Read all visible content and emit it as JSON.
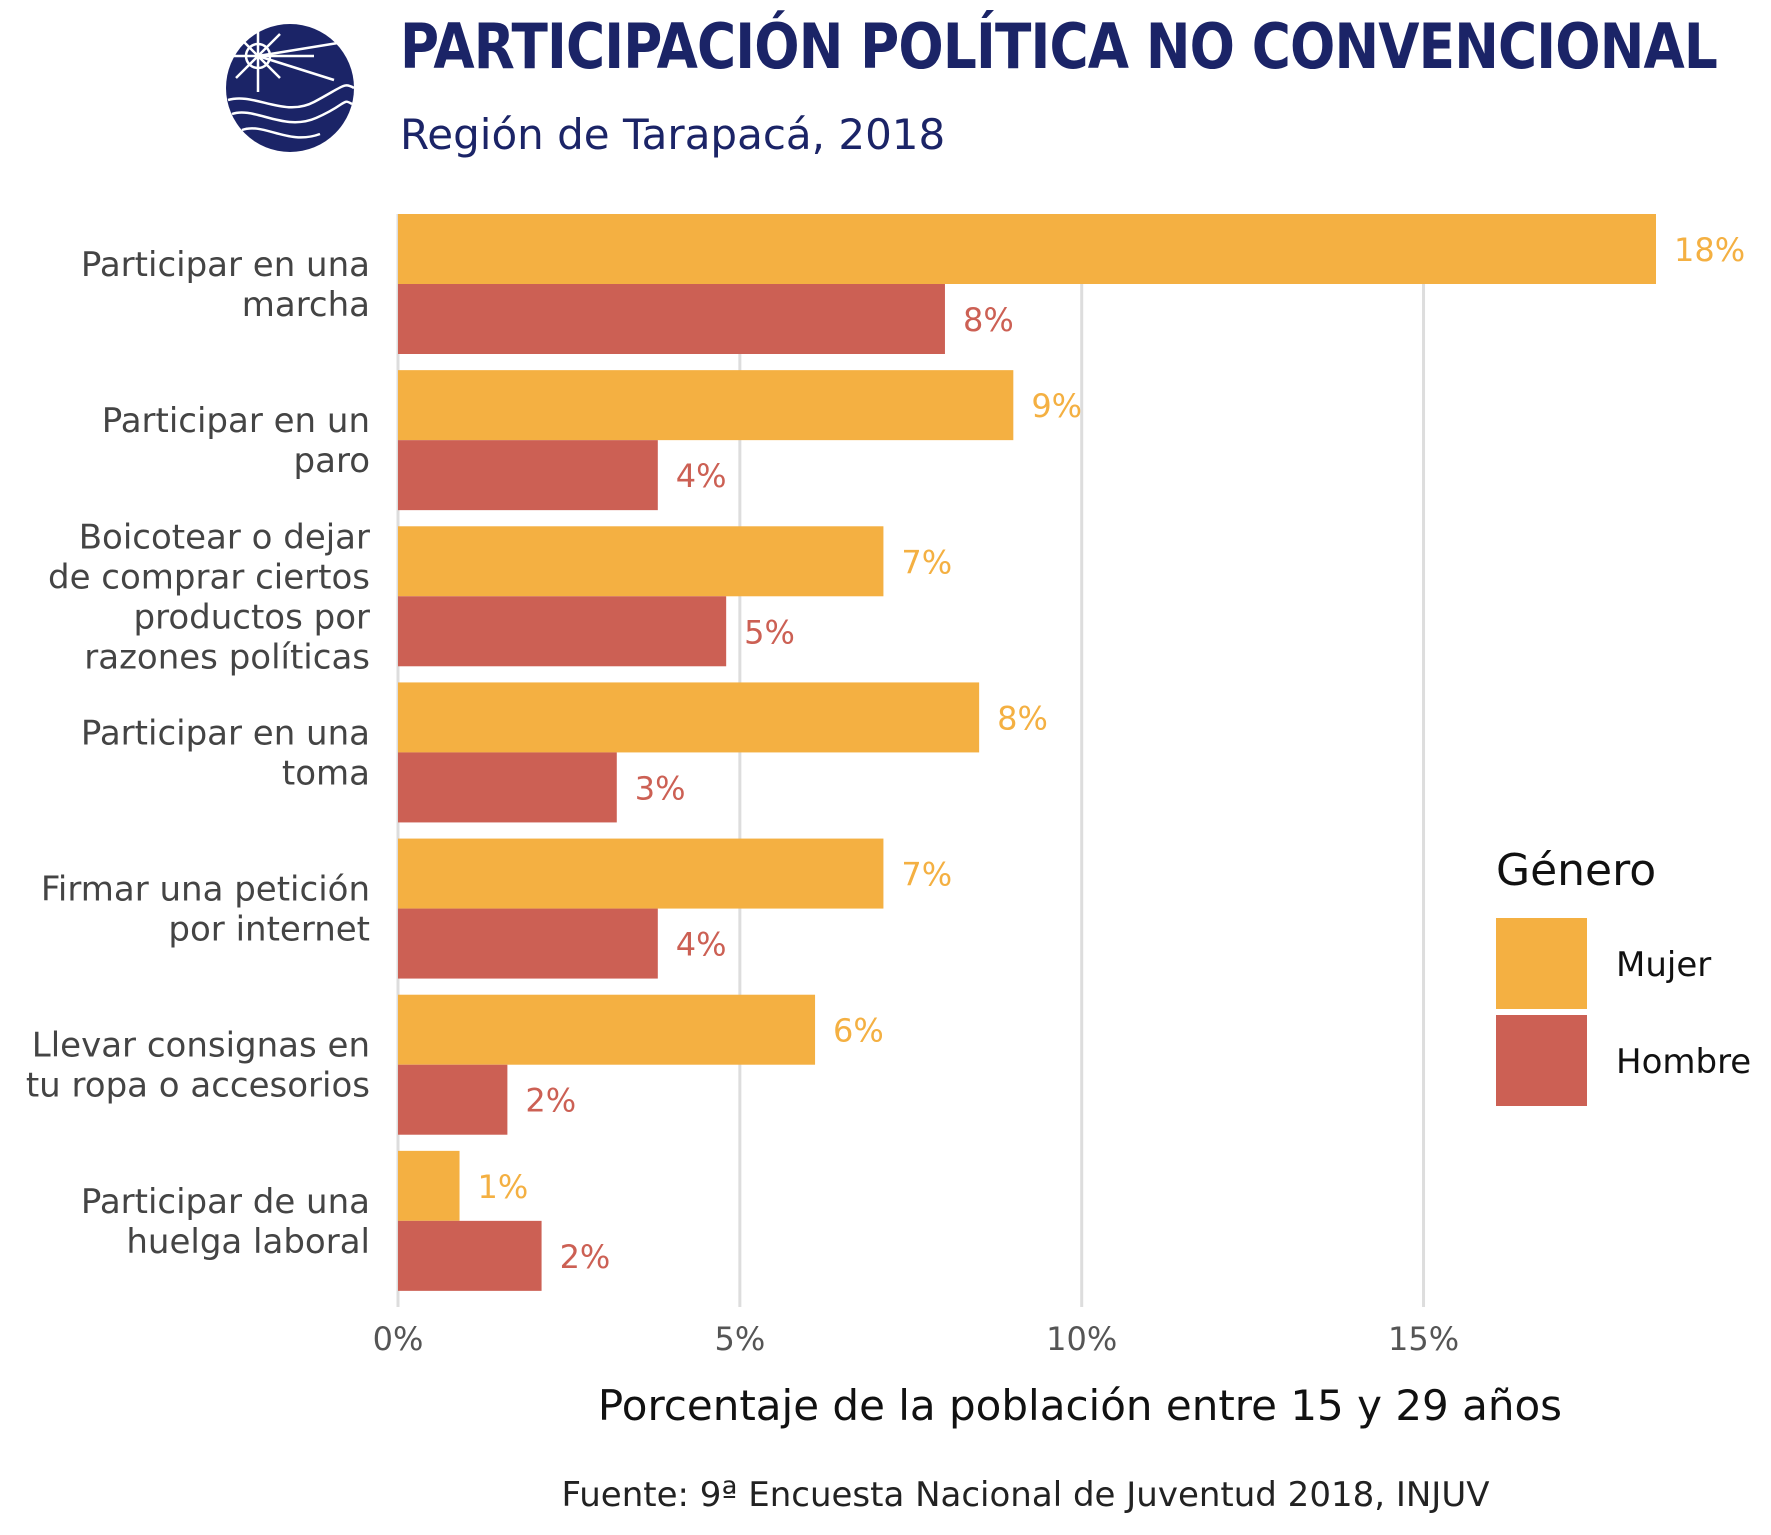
{
  "header": {
    "title": "PARTICIPACIÓN POLÍTICA NO CONVENCIONAL",
    "subtitle": "Región de Tarapacá, 2018"
  },
  "logo": {
    "icon": "injuv-logo",
    "color": "#1b2467"
  },
  "source": "Fuente: 9ª Encuesta Nacional de Juventud 2018, INJUV",
  "chart_data": {
    "type": "bar",
    "orientation": "horizontal",
    "categories": [
      [
        "Participar en una",
        "marcha"
      ],
      [
        "Participar en un",
        "paro"
      ],
      [
        "Boicotear o dejar",
        "de comprar ciertos",
        "productos por",
        "razones políticas"
      ],
      [
        "Participar en una",
        "toma"
      ],
      [
        "Firmar una petición",
        "por internet"
      ],
      [
        "Llevar consignas en",
        "tu ropa o accesorios"
      ],
      [
        "Participar de una",
        "huelga laboral"
      ]
    ],
    "series": [
      {
        "name": "Mujer",
        "color": "#f4b042",
        "values": [
          18.4,
          9.0,
          7.1,
          8.5,
          7.1,
          6.1,
          0.9
        ],
        "labels": [
          "18%",
          "9%",
          "7%",
          "8%",
          "7%",
          "6%",
          "1%"
        ]
      },
      {
        "name": "Hombre",
        "color": "#cc6054",
        "values": [
          8.0,
          3.8,
          4.8,
          3.2,
          3.8,
          1.6,
          2.1
        ],
        "labels": [
          "8%",
          "4%",
          "5%",
          "3%",
          "4%",
          "2%",
          "2%"
        ]
      }
    ],
    "xlabel": "Porcentaje de la población entre 15 y 29 años",
    "ylabel": "",
    "xlim": [
      0,
      18.4
    ],
    "xticks": [
      0,
      5,
      10,
      15
    ],
    "xtick_labels": [
      "0%",
      "5%",
      "10%",
      "15%"
    ],
    "legend": {
      "title": "Género",
      "position": "right"
    },
    "grid": {
      "vertical": true,
      "color": "#dddddd"
    }
  }
}
